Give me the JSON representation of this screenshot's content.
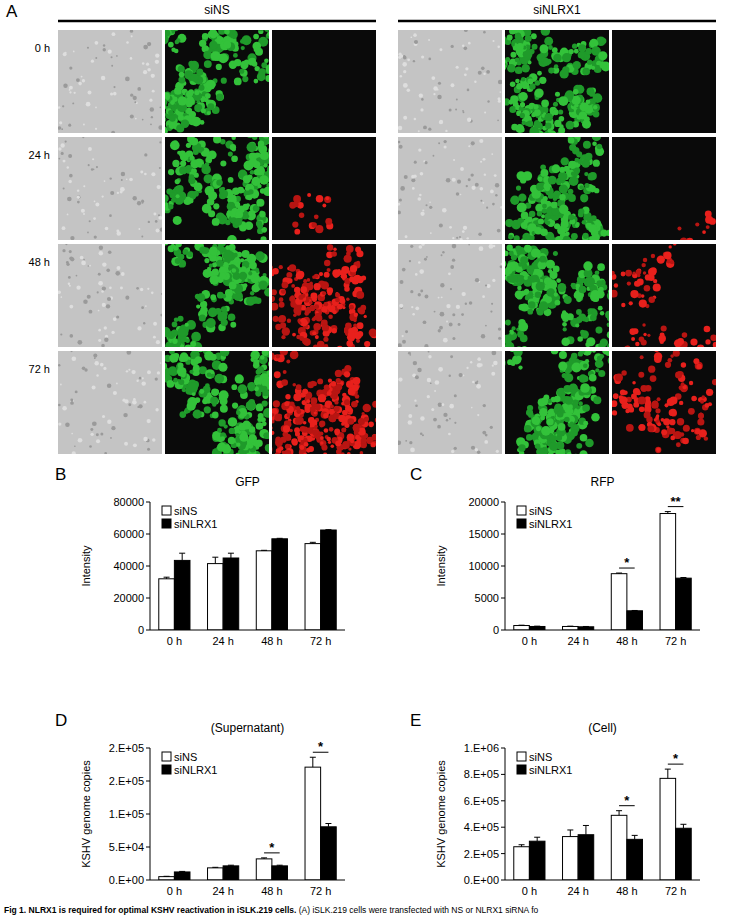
{
  "panel_a": {
    "panel": "A",
    "groups": [
      "siNS",
      "siNLRX1"
    ],
    "rows": [
      "0 h",
      "24 h",
      "48 h",
      "72 h"
    ]
  },
  "chart_data": [
    {
      "type": "bar",
      "panel": "B",
      "title": "GFP",
      "y_label": "Intensity",
      "categories": [
        "0 h",
        "24 h",
        "48 h",
        "72 h"
      ],
      "series": [
        {
          "name": "siNS",
          "color": "#ffffff",
          "values": [
            32000,
            41500,
            49500,
            54000
          ],
          "errors": [
            1000,
            4000,
            300,
            800
          ]
        },
        {
          "name": "siNLRX1",
          "color": "#000000",
          "values": [
            43500,
            45000,
            57000,
            62500
          ],
          "errors": [
            4500,
            3000,
            300,
            200
          ]
        }
      ],
      "ylim": [
        0,
        80000
      ],
      "yticks": [
        0,
        20000,
        40000,
        60000,
        80000
      ],
      "grid": false,
      "legend": "upper left",
      "annotations": []
    },
    {
      "type": "bar",
      "panel": "C",
      "title": "RFP",
      "y_label": "Intensity",
      "categories": [
        "0 h",
        "24 h",
        "48 h",
        "72 h"
      ],
      "series": [
        {
          "name": "siNS",
          "color": "#ffffff",
          "values": [
            700,
            550,
            8800,
            18200
          ],
          "errors": [
            50,
            50,
            100,
            300
          ]
        },
        {
          "name": "siNLRX1",
          "color": "#000000",
          "values": [
            550,
            500,
            3000,
            8100
          ],
          "errors": [
            50,
            50,
            50,
            100
          ]
        }
      ],
      "ylim": [
        0,
        20000
      ],
      "yticks": [
        0,
        5000,
        10000,
        15000,
        20000
      ],
      "grid": false,
      "legend": "upper left",
      "annotations": [
        {
          "text": "*",
          "x": "48 h"
        },
        {
          "text": "**",
          "x": "72 h"
        }
      ]
    },
    {
      "type": "bar",
      "panel": "D",
      "title": "(Supernatant)",
      "y_label": "KSHV genome copies",
      "categories": [
        "0 h",
        "24 h",
        "48 h",
        "72 h"
      ],
      "series": [
        {
          "name": "siNS",
          "color": "#ffffff",
          "values": [
            5100,
            18400,
            32000,
            171000
          ],
          "errors": [
            500,
            800,
            1500,
            15000
          ]
        },
        {
          "name": "siNLRX1",
          "color": "#000000",
          "values": [
            12200,
            21400,
            21400,
            80600
          ],
          "errors": [
            800,
            1000,
            1000,
            5000
          ]
        }
      ],
      "ylim": [
        0,
        200000
      ],
      "yticks": [
        {
          "value": 0,
          "label": "0.E+00"
        },
        {
          "value": 50000,
          "label": "5.E+04"
        },
        {
          "value": 100000,
          "label": "1.E+05"
        },
        {
          "value": 150000,
          "label": "2.E+05"
        },
        {
          "value": 200000,
          "label": "2.E+05"
        }
      ],
      "grid": false,
      "legend": "upper left",
      "annotations": [
        {
          "text": "*",
          "x": "48 h"
        },
        {
          "text": "*",
          "x": "72 h"
        }
      ]
    },
    {
      "type": "bar",
      "panel": "E",
      "title": "(Cell)",
      "y_label": "KSHV genome copies",
      "categories": [
        "0 h",
        "24 h",
        "48 h",
        "72 h"
      ],
      "series": [
        {
          "name": "siNS",
          "color": "#ffffff",
          "values": [
            252000,
            329000,
            490000,
            770000
          ],
          "errors": [
            15000,
            50000,
            35000,
            70000
          ]
        },
        {
          "name": "siNLRX1",
          "color": "#000000",
          "values": [
            294000,
            343000,
            308000,
            392000
          ],
          "errors": [
            30000,
            70000,
            30000,
            30000
          ]
        }
      ],
      "ylim": [
        0,
        1000000
      ],
      "yticks": [
        {
          "value": 0,
          "label": "0.E+00"
        },
        {
          "value": 200000,
          "label": "2.E+05"
        },
        {
          "value": 400000,
          "label": "4.E+05"
        },
        {
          "value": 600000,
          "label": "6.E+05"
        },
        {
          "value": 800000,
          "label": "8.E+05"
        },
        {
          "value": 1000000,
          "label": "1.E+06"
        }
      ],
      "grid": false,
      "legend": "upper left",
      "annotations": [
        {
          "text": "*",
          "x": "48 h"
        },
        {
          "text": "*",
          "x": "72 h"
        }
      ]
    }
  ],
  "caption": {
    "bold": "Fig 1. NLRX1 is required for optimal KSHV reactivation in iSLK.219 cells.",
    "text": " (A) iSLK.219 cells were transfected with NS or NLRX1 siRNA fo"
  }
}
